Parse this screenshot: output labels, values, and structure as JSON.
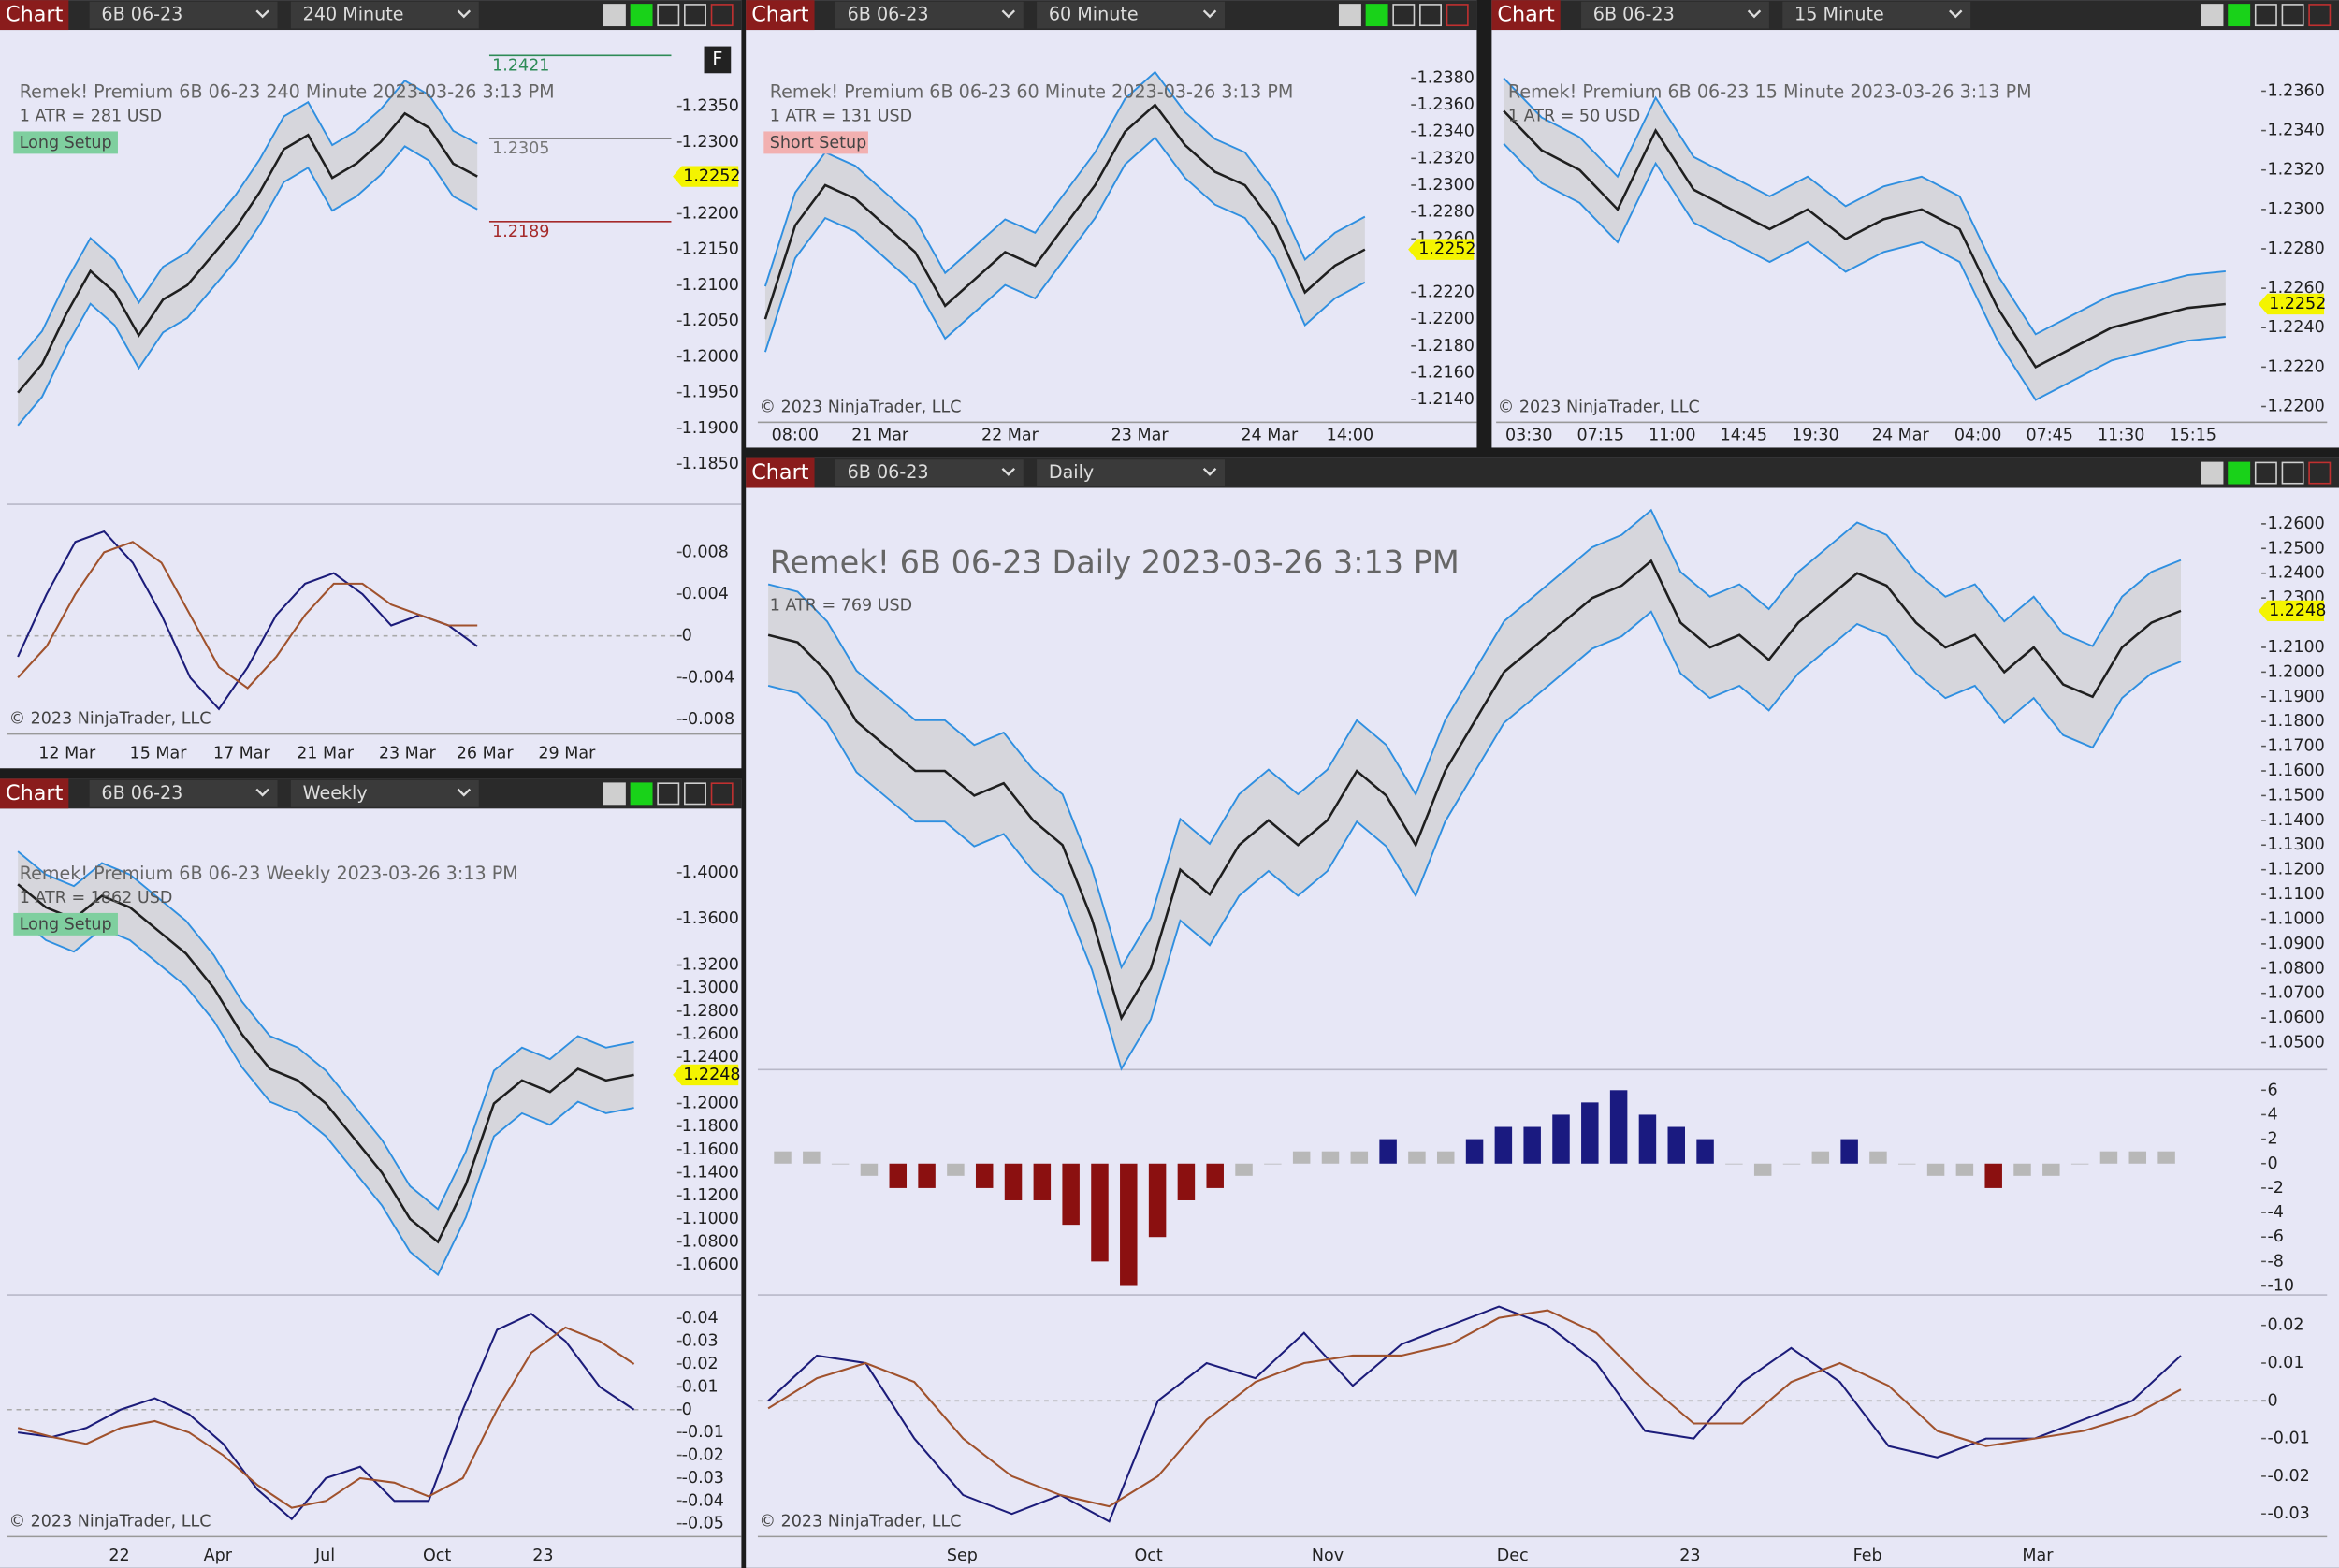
{
  "panels": [
    {
      "toolbar": {
        "label": "Chart",
        "instrument": "6B 06-23",
        "timeframe": "240 Minute"
      },
      "header": "Remek!  Premium  6B 06-23  240 Minute  2023-03-26 3:13 PM",
      "atr": "1 ATR = 281 USD",
      "setup": {
        "text": "Long Setup",
        "color": "#7fcf9f"
      },
      "button": "F",
      "copyright": "© 2023 NinjaTrader, LLC",
      "price": {
        "ylim": [
          1.1794,
          1.244
        ],
        "yticks": [
          {
            "value": 1.235,
            "label": "1.2350"
          },
          {
            "value": 1.23,
            "label": "1.2300"
          },
          {
            "value": 1.22,
            "label": "1.2200"
          },
          {
            "value": 1.215,
            "label": "1.2150"
          },
          {
            "value": 1.21,
            "label": "1.2100"
          },
          {
            "value": 1.205,
            "label": "1.2050"
          },
          {
            "value": 1.2,
            "label": "1.2000"
          },
          {
            "value": 1.195,
            "label": "1.1950"
          },
          {
            "value": 1.19,
            "label": "1.1900"
          },
          {
            "value": 1.185,
            "label": "1.1850"
          }
        ],
        "values": [
          1.195,
          1.199,
          1.206,
          1.212,
          1.209,
          1.203,
          1.208,
          1.21,
          1.214,
          1.218,
          1.223,
          1.229,
          1.231,
          1.225,
          1.227,
          1.23,
          1.234,
          1.232,
          1.227,
          1.2252
        ],
        "last": 1.2252,
        "levels": [
          {
            "value": 1.2421,
            "color": "#2e8b57"
          },
          {
            "value": 1.2305,
            "color": "#777777"
          },
          {
            "value": 1.2189,
            "color": "#a52a2a"
          }
        ]
      },
      "osc": {
        "ylim": [
          -0.0094,
          0.0126
        ],
        "yticks": [
          0.008,
          0.004,
          0,
          -0.004,
          -0.008
        ],
        "series": [
          {
            "color": "#1c1c7a",
            "values": [
              -0.002,
              0.004,
              0.009,
              0.01,
              0.007,
              0.002,
              -0.004,
              -0.007,
              -0.003,
              0.002,
              0.005,
              0.006,
              0.004,
              0.001,
              0.002,
              0.001,
              -0.001
            ]
          },
          {
            "color": "#a0522d",
            "values": [
              -0.004,
              -0.001,
              0.004,
              0.008,
              0.009,
              0.007,
              0.002,
              -0.003,
              -0.005,
              -0.002,
              0.002,
              0.005,
              0.005,
              0.003,
              0.002,
              0.001,
              0.001
            ]
          }
        ]
      },
      "x_labels": [
        "12 Mar",
        "15 Mar",
        "17 Mar",
        "21 Mar",
        "23 Mar",
        "26 Mar",
        "29 Mar"
      ]
    },
    {
      "toolbar": {
        "label": "Chart",
        "instrument": "6B 06-23",
        "timeframe": "60 Minute"
      },
      "header": "Remek!  Premium  6B 06-23  60 Minute  2023-03-26 3:13 PM",
      "atr": "1 ATR = 131 USD",
      "setup": {
        "text": "Short Setup",
        "color": "#f2b0b0"
      },
      "copyright": "© 2023 NinjaTrader, LLC",
      "price": {
        "ylim": [
          1.2123,
          1.2407
        ],
        "yticks": [
          {
            "value": 1.238,
            "label": "1.2380"
          },
          {
            "value": 1.236,
            "label": "1.2360"
          },
          {
            "value": 1.234,
            "label": "1.2340"
          },
          {
            "value": 1.232,
            "label": "1.2320"
          },
          {
            "value": 1.23,
            "label": "1.2300"
          },
          {
            "value": 1.228,
            "label": "1.2280"
          },
          {
            "value": 1.226,
            "label": "1.2260"
          },
          {
            "value": 1.222,
            "label": "1.2220"
          },
          {
            "value": 1.22,
            "label": "1.2200"
          },
          {
            "value": 1.218,
            "label": "1.2180"
          },
          {
            "value": 1.216,
            "label": "1.2160"
          },
          {
            "value": 1.214,
            "label": "1.2140"
          }
        ],
        "values": [
          1.22,
          1.227,
          1.23,
          1.229,
          1.227,
          1.225,
          1.221,
          1.223,
          1.225,
          1.224,
          1.227,
          1.23,
          1.234,
          1.236,
          1.233,
          1.231,
          1.23,
          1.227,
          1.222,
          1.224,
          1.2252
        ],
        "last": 1.2252
      },
      "x_labels": [
        "08:00",
        "21 Mar",
        "22 Mar",
        "23 Mar",
        "24 Mar",
        "14:00"
      ]
    },
    {
      "toolbar": {
        "label": "Chart",
        "instrument": "6B 06-23",
        "timeframe": "15 Minute"
      },
      "header": "Remek!  Premium  6B 06-23  15 Minute  2023-03-26 3:13 PM",
      "atr": "1 ATR = 50 USD",
      "copyright": "© 2023 NinjaTrader, LLC",
      "price": {
        "ylim": [
          1.2192,
          1.2385
        ],
        "yticks": [
          {
            "value": 1.236,
            "label": "1.2360"
          },
          {
            "value": 1.234,
            "label": "1.2340"
          },
          {
            "value": 1.232,
            "label": "1.2320"
          },
          {
            "value": 1.23,
            "label": "1.2300"
          },
          {
            "value": 1.228,
            "label": "1.2280"
          },
          {
            "value": 1.226,
            "label": "1.2260"
          },
          {
            "value": 1.224,
            "label": "1.2240"
          },
          {
            "value": 1.222,
            "label": "1.2220"
          },
          {
            "value": 1.22,
            "label": "1.2200"
          }
        ],
        "values": [
          1.235,
          1.233,
          1.232,
          1.23,
          1.234,
          1.231,
          1.23,
          1.229,
          1.23,
          1.2285,
          1.2295,
          1.23,
          1.229,
          1.225,
          1.222,
          1.223,
          1.224,
          1.2245,
          1.225,
          1.2252
        ],
        "last": 1.2252
      },
      "x_labels": [
        "03:30",
        "07:15",
        "11:00",
        "14:45",
        "19:30",
        "24 Mar",
        "04:00",
        "07:45",
        "11:30",
        "15:15"
      ]
    },
    {
      "toolbar": {
        "label": "Chart",
        "instrument": "6B 06-23",
        "timeframe": "Weekly"
      },
      "header": "Remek!  Premium  6B 06-23  Weekly  2023-03-26 3:13 PM",
      "atr": "1 ATR = 1862 USD",
      "setup": {
        "text": "Long Setup",
        "color": "#7fcf9f"
      },
      "copyright": "© 2023 NinjaTrader, LLC",
      "price": {
        "ylim": [
          1.0341,
          1.4414
        ],
        "yticks": [
          {
            "value": 1.4,
            "label": "1.4000"
          },
          {
            "value": 1.36,
            "label": "1.3600"
          },
          {
            "value": 1.32,
            "label": "1.3200"
          },
          {
            "value": 1.3,
            "label": "1.3000"
          },
          {
            "value": 1.28,
            "label": "1.2800"
          },
          {
            "value": 1.26,
            "label": "1.2600"
          },
          {
            "value": 1.24,
            "label": "1.2400"
          },
          {
            "value": 1.2,
            "label": "1.2000"
          },
          {
            "value": 1.18,
            "label": "1.1800"
          },
          {
            "value": 1.16,
            "label": "1.1600"
          },
          {
            "value": 1.14,
            "label": "1.1400"
          },
          {
            "value": 1.12,
            "label": "1.1200"
          },
          {
            "value": 1.1,
            "label": "1.1000"
          },
          {
            "value": 1.08,
            "label": "1.0800"
          },
          {
            "value": 1.06,
            "label": "1.0600"
          }
        ],
        "values": [
          1.39,
          1.37,
          1.36,
          1.38,
          1.37,
          1.35,
          1.33,
          1.3,
          1.26,
          1.23,
          1.22,
          1.2,
          1.17,
          1.14,
          1.1,
          1.08,
          1.13,
          1.2,
          1.22,
          1.21,
          1.23,
          1.22,
          1.2248
        ],
        "last": 1.2248
      },
      "osc": {
        "ylim": [
          -0.0556,
          0.0503
        ],
        "yticks": [
          0.04,
          0.03,
          0.02,
          0.01,
          0,
          -0.01,
          -0.02,
          -0.03,
          -0.04,
          -0.05
        ],
        "series": [
          {
            "color": "#1c1c7a",
            "values": [
              -0.01,
              -0.012,
              -0.008,
              0,
              0.005,
              -0.002,
              -0.015,
              -0.035,
              -0.048,
              -0.03,
              -0.025,
              -0.04,
              -0.04,
              0,
              0.035,
              0.042,
              0.03,
              0.01,
              0
            ]
          },
          {
            "color": "#a0522d",
            "values": [
              -0.008,
              -0.012,
              -0.015,
              -0.008,
              -0.005,
              -0.01,
              -0.02,
              -0.033,
              -0.043,
              -0.04,
              -0.03,
              -0.032,
              -0.038,
              -0.03,
              0,
              0.025,
              0.036,
              0.03,
              0.02
            ]
          }
        ]
      },
      "x_labels": [
        "22",
        "Apr",
        "Jul",
        "Oct",
        "23"
      ]
    },
    {
      "toolbar": {
        "label": "Chart",
        "instrument": "6B 06-23",
        "timeframe": "Daily"
      },
      "header": "Remek!  6B 06-23  Daily  2023-03-26 3:13 PM",
      "atr": "1 ATR = 769 USD",
      "copyright": "© 2023 NinjaTrader, LLC",
      "price": {
        "ylim": [
          1.0391,
          1.2685
        ],
        "yticks": [
          {
            "value": 1.26,
            "label": "1.2600"
          },
          {
            "value": 1.25,
            "label": "1.2500"
          },
          {
            "value": 1.24,
            "label": "1.2400"
          },
          {
            "value": 1.23,
            "label": "1.2300"
          },
          {
            "value": 1.21,
            "label": "1.2100"
          },
          {
            "value": 1.2,
            "label": "1.2000"
          },
          {
            "value": 1.19,
            "label": "1.1900"
          },
          {
            "value": 1.18,
            "label": "1.1800"
          },
          {
            "value": 1.17,
            "label": "1.1700"
          },
          {
            "value": 1.16,
            "label": "1.1600"
          },
          {
            "value": 1.15,
            "label": "1.1500"
          },
          {
            "value": 1.14,
            "label": "1.1400"
          },
          {
            "value": 1.13,
            "label": "1.1300"
          },
          {
            "value": 1.12,
            "label": "1.1200"
          },
          {
            "value": 1.11,
            "label": "1.1100"
          },
          {
            "value": 1.1,
            "label": "1.1000"
          },
          {
            "value": 1.09,
            "label": "1.0900"
          },
          {
            "value": 1.08,
            "label": "1.0800"
          },
          {
            "value": 1.07,
            "label": "1.0700"
          },
          {
            "value": 1.06,
            "label": "1.0600"
          },
          {
            "value": 1.05,
            "label": "1.0500"
          }
        ],
        "values": [
          1.215,
          1.212,
          1.2,
          1.18,
          1.17,
          1.16,
          1.16,
          1.15,
          1.155,
          1.14,
          1.13,
          1.1,
          1.06,
          1.08,
          1.12,
          1.11,
          1.13,
          1.14,
          1.13,
          1.14,
          1.16,
          1.15,
          1.13,
          1.16,
          1.18,
          1.2,
          1.21,
          1.22,
          1.23,
          1.235,
          1.245,
          1.22,
          1.21,
          1.215,
          1.205,
          1.22,
          1.23,
          1.24,
          1.235,
          1.22,
          1.21,
          1.215,
          1.2,
          1.21,
          1.195,
          1.19,
          1.21,
          1.22,
          1.2248
        ],
        "last": 1.2248
      },
      "hist": {
        "ylim": [
          -10.73,
          7.68
        ],
        "yticks": [
          6,
          4,
          2,
          0,
          -2,
          -4,
          -6,
          -8,
          -10
        ],
        "values": [
          1,
          1,
          0,
          -1,
          -2,
          -2,
          -1,
          -2,
          -3,
          -3,
          -5,
          -8,
          -10,
          -6,
          -3,
          -2,
          -1,
          0,
          1,
          1,
          1,
          2,
          1,
          1,
          2,
          3,
          3,
          4,
          5,
          6,
          4,
          3,
          2,
          0,
          -1,
          0,
          1,
          2,
          1,
          0,
          -1,
          -1,
          -2,
          -1,
          -1,
          0,
          1,
          1,
          1
        ]
      },
      "osc": {
        "ylim": [
          -0.036,
          0.0281
        ],
        "yticks": [
          0.02,
          0.01,
          0,
          -0.01,
          -0.02,
          -0.03
        ],
        "series": [
          {
            "color": "#1c1c7a",
            "values": [
              0,
              0.012,
              0.01,
              -0.01,
              -0.025,
              -0.03,
              -0.025,
              -0.032,
              0,
              0.01,
              0.006,
              0.018,
              0.004,
              0.015,
              0.02,
              0.025,
              0.02,
              0.01,
              -0.008,
              -0.01,
              0.005,
              0.014,
              0.005,
              -0.012,
              -0.015,
              -0.01,
              -0.01,
              -0.005,
              0,
              0.012
            ]
          },
          {
            "color": "#a0522d",
            "values": [
              -0.002,
              0.006,
              0.01,
              0.005,
              -0.01,
              -0.02,
              -0.025,
              -0.028,
              -0.02,
              -0.005,
              0.005,
              0.01,
              0.012,
              0.012,
              0.015,
              0.022,
              0.024,
              0.018,
              0.005,
              -0.006,
              -0.006,
              0.005,
              0.01,
              0.004,
              -0.008,
              -0.012,
              -0.01,
              -0.008,
              -0.004,
              0.003
            ]
          }
        ]
      },
      "x_labels": [
        "Sep",
        "Oct",
        "Nov",
        "Dec",
        "23",
        "Feb",
        "Mar"
      ]
    }
  ]
}
